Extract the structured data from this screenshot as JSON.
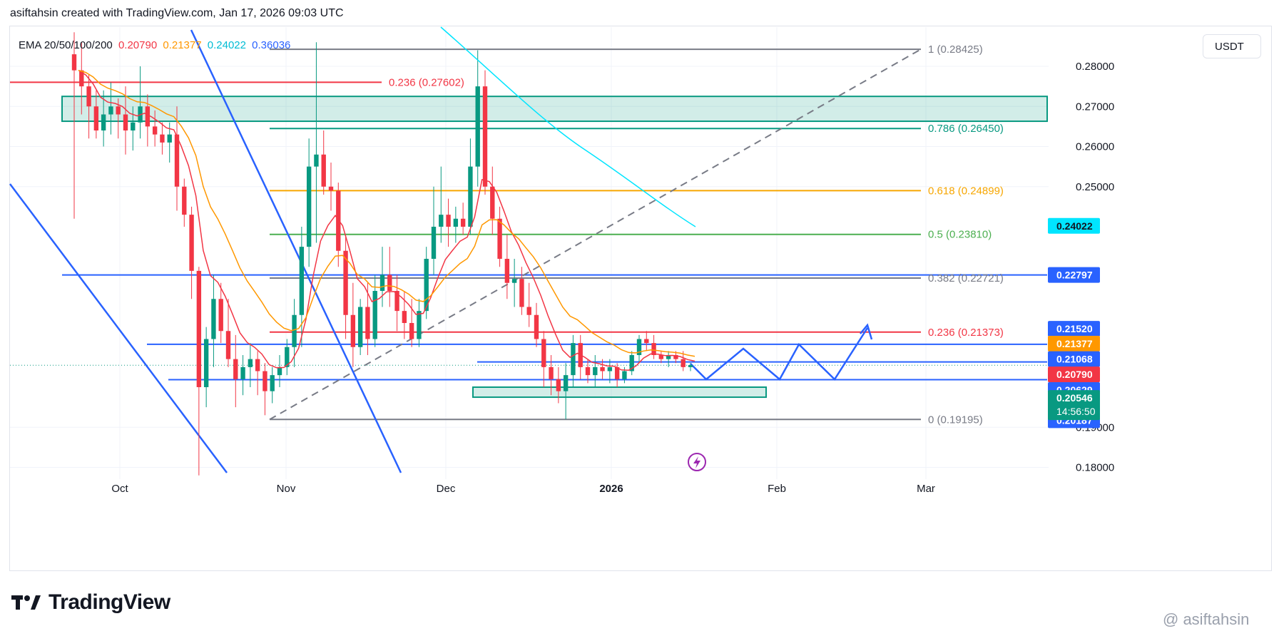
{
  "header": {
    "attribution": "asiftahsin created with TradingView.com, Jan 17, 2026 09:03 UTC"
  },
  "legend": {
    "label": "EMA 20/50/100/200",
    "values": [
      {
        "text": "0.20790",
        "color": "#f23645"
      },
      {
        "text": "0.21377",
        "color": "#ff9800"
      },
      {
        "text": "0.24022",
        "color": "#00bcd4"
      },
      {
        "text": "0.36036",
        "color": "#2962ff"
      }
    ]
  },
  "currency": "USDT",
  "brand": {
    "name": "TradingView"
  },
  "watermark": "@ asiftahsin",
  "chart_data": {
    "type": "candlestick",
    "symbol_currency": "USDT",
    "y_range": [
      0.175,
      0.2865
    ],
    "x_ticks": [
      "Oct",
      "Nov",
      "Dec",
      "2026",
      "Feb",
      "Mar"
    ],
    "y_ticks": [
      "0.28000",
      "0.27000",
      "0.26000",
      "0.25000",
      "0.19000",
      "0.18000"
    ],
    "fibonacci_levels": [
      {
        "text": "1 (0.28425)",
        "ratio": 1,
        "price": 0.28425,
        "color": "#787b86"
      },
      {
        "text": "0.786 (0.26450)",
        "ratio": 0.786,
        "price": 0.2645,
        "color": "#089981"
      },
      {
        "text": "0.618 (0.24899)",
        "ratio": 0.618,
        "price": 0.24899,
        "color": "#f7a600"
      },
      {
        "text": "0.5 (0.23810)",
        "ratio": 0.5,
        "price": 0.2381,
        "color": "#4caf50"
      },
      {
        "text": "0.382 (0.22721)",
        "ratio": 0.382,
        "price": 0.22721,
        "color": "#787b86"
      },
      {
        "text": "0.236 (0.21373)",
        "ratio": 0.236,
        "price": 0.21373,
        "color": "#f23645"
      },
      {
        "text": "0 (0.19195)",
        "ratio": 0,
        "price": 0.19195,
        "color": "#787b86"
      }
    ],
    "fib_upper_left": {
      "text": "0.236 (0.27602)",
      "price": 0.27602,
      "color": "#f23645"
    },
    "price_labels": [
      {
        "text": "0.24022",
        "price": 0.24022,
        "bg": "#00e5ff",
        "fg": "#131722"
      },
      {
        "text": "0.22797",
        "price": 0.22797,
        "bg": "#2962ff",
        "fg": "#ffffff"
      },
      {
        "text": "0.21520",
        "price": 0.2152,
        "bg": "#2962ff",
        "fg": "#ffffff"
      },
      {
        "text": "0.21377",
        "price": 0.21377,
        "bg": "#ff9800",
        "fg": "#ffffff"
      },
      {
        "text": "0.21068",
        "price": 0.21068,
        "bg": "#2962ff",
        "fg": "#ffffff"
      },
      {
        "text": "0.20790",
        "price": 0.2079,
        "bg": "#f23645",
        "fg": "#ffffff"
      },
      {
        "text": "0.20629",
        "price": 0.20629,
        "bg": "#2962ff",
        "fg": "#ffffff"
      },
      {
        "text": "0.20187",
        "price": 0.20187,
        "bg": "#2962ff",
        "fg": "#ffffff"
      }
    ],
    "last_price": {
      "text": "0.20546",
      "price": 0.20546,
      "countdown": "14:56:50",
      "bg": "#089981"
    },
    "support_zone": [
      0.2,
      0.1975
    ],
    "resistance_zone": [
      0.2725,
      0.2663
    ],
    "horizontal_levels": [
      0.22797,
      0.21068,
      0.20629,
      0.20187
    ],
    "candles_ohlc": [
      [
        0.283,
        0.2885,
        0.242,
        0.279
      ],
      [
        0.279,
        0.286,
        0.268,
        0.275
      ],
      [
        0.275,
        0.278,
        0.262,
        0.27
      ],
      [
        0.27,
        0.274,
        0.262,
        0.264
      ],
      [
        0.264,
        0.274,
        0.26,
        0.268
      ],
      [
        0.268,
        0.276,
        0.263,
        0.27
      ],
      [
        0.27,
        0.272,
        0.262,
        0.268
      ],
      [
        0.268,
        0.275,
        0.258,
        0.264
      ],
      [
        0.264,
        0.27,
        0.259,
        0.266
      ],
      [
        0.266,
        0.28,
        0.262,
        0.27
      ],
      [
        0.27,
        0.273,
        0.26,
        0.265
      ],
      [
        0.265,
        0.269,
        0.26,
        0.263
      ],
      [
        0.263,
        0.266,
        0.258,
        0.261
      ],
      [
        0.261,
        0.266,
        0.256,
        0.263
      ],
      [
        0.263,
        0.27,
        0.244,
        0.25
      ],
      [
        0.25,
        0.252,
        0.24,
        0.243
      ],
      [
        0.243,
        0.245,
        0.222,
        0.229
      ],
      [
        0.229,
        0.23,
        0.178,
        0.2
      ],
      [
        0.2,
        0.215,
        0.195,
        0.212
      ],
      [
        0.212,
        0.228,
        0.205,
        0.222
      ],
      [
        0.222,
        0.226,
        0.211,
        0.214
      ],
      [
        0.214,
        0.222,
        0.205,
        0.207
      ],
      [
        0.207,
        0.213,
        0.195,
        0.202
      ],
      [
        0.202,
        0.208,
        0.198,
        0.205
      ],
      [
        0.205,
        0.211,
        0.2,
        0.207
      ],
      [
        0.207,
        0.209,
        0.198,
        0.204
      ],
      [
        0.204,
        0.206,
        0.193,
        0.199
      ],
      [
        0.199,
        0.205,
        0.196,
        0.203
      ],
      [
        0.203,
        0.208,
        0.2,
        0.205
      ],
      [
        0.205,
        0.212,
        0.203,
        0.21
      ],
      [
        0.21,
        0.222,
        0.205,
        0.218
      ],
      [
        0.218,
        0.24,
        0.21,
        0.235
      ],
      [
        0.235,
        0.262,
        0.23,
        0.255
      ],
      [
        0.255,
        0.286,
        0.236,
        0.258
      ],
      [
        0.258,
        0.264,
        0.248,
        0.25
      ],
      [
        0.25,
        0.256,
        0.244,
        0.249
      ],
      [
        0.249,
        0.251,
        0.23,
        0.234
      ],
      [
        0.234,
        0.238,
        0.212,
        0.218
      ],
      [
        0.218,
        0.226,
        0.205,
        0.21
      ],
      [
        0.21,
        0.222,
        0.208,
        0.22
      ],
      [
        0.22,
        0.226,
        0.208,
        0.212
      ],
      [
        0.212,
        0.228,
        0.21,
        0.224
      ],
      [
        0.224,
        0.235,
        0.22,
        0.228
      ],
      [
        0.228,
        0.235,
        0.22,
        0.224
      ],
      [
        0.224,
        0.228,
        0.214,
        0.219
      ],
      [
        0.219,
        0.224,
        0.212,
        0.216
      ],
      [
        0.216,
        0.222,
        0.21,
        0.212
      ],
      [
        0.212,
        0.222,
        0.21,
        0.219
      ],
      [
        0.219,
        0.235,
        0.217,
        0.232
      ],
      [
        0.232,
        0.25,
        0.228,
        0.24
      ],
      [
        0.24,
        0.255,
        0.236,
        0.243
      ],
      [
        0.243,
        0.247,
        0.235,
        0.24
      ],
      [
        0.24,
        0.245,
        0.236,
        0.242
      ],
      [
        0.242,
        0.246,
        0.238,
        0.24
      ],
      [
        0.24,
        0.262,
        0.238,
        0.255
      ],
      [
        0.255,
        0.284,
        0.25,
        0.275
      ],
      [
        0.275,
        0.279,
        0.248,
        0.25
      ],
      [
        0.25,
        0.255,
        0.238,
        0.242
      ],
      [
        0.242,
        0.245,
        0.23,
        0.232
      ],
      [
        0.232,
        0.238,
        0.222,
        0.226
      ],
      [
        0.226,
        0.232,
        0.22,
        0.227
      ],
      [
        0.227,
        0.23,
        0.218,
        0.22
      ],
      [
        0.22,
        0.226,
        0.215,
        0.218
      ],
      [
        0.218,
        0.221,
        0.21,
        0.212
      ],
      [
        0.212,
        0.214,
        0.2,
        0.205
      ],
      [
        0.205,
        0.208,
        0.198,
        0.202
      ],
      [
        0.202,
        0.205,
        0.196,
        0.199
      ],
      [
        0.199,
        0.206,
        0.192,
        0.203
      ],
      [
        0.203,
        0.213,
        0.2,
        0.211
      ],
      [
        0.211,
        0.213,
        0.202,
        0.205
      ],
      [
        0.205,
        0.207,
        0.201,
        0.203
      ],
      [
        0.203,
        0.208,
        0.2,
        0.205
      ],
      [
        0.205,
        0.207,
        0.202,
        0.204
      ],
      [
        0.204,
        0.207,
        0.201,
        0.205
      ],
      [
        0.205,
        0.206,
        0.2,
        0.202
      ],
      [
        0.202,
        0.205,
        0.201,
        0.204
      ],
      [
        0.204,
        0.209,
        0.203,
        0.208
      ],
      [
        0.208,
        0.213,
        0.206,
        0.212
      ],
      [
        0.212,
        0.214,
        0.209,
        0.211
      ],
      [
        0.211,
        0.213,
        0.207,
        0.208
      ],
      [
        0.208,
        0.209,
        0.206,
        0.207
      ],
      [
        0.207,
        0.209,
        0.205,
        0.208
      ],
      [
        0.208,
        0.209,
        0.206,
        0.207
      ],
      [
        0.207,
        0.209,
        0.204,
        0.205
      ],
      [
        0.205,
        0.206,
        0.204,
        0.2055
      ]
    ]
  }
}
